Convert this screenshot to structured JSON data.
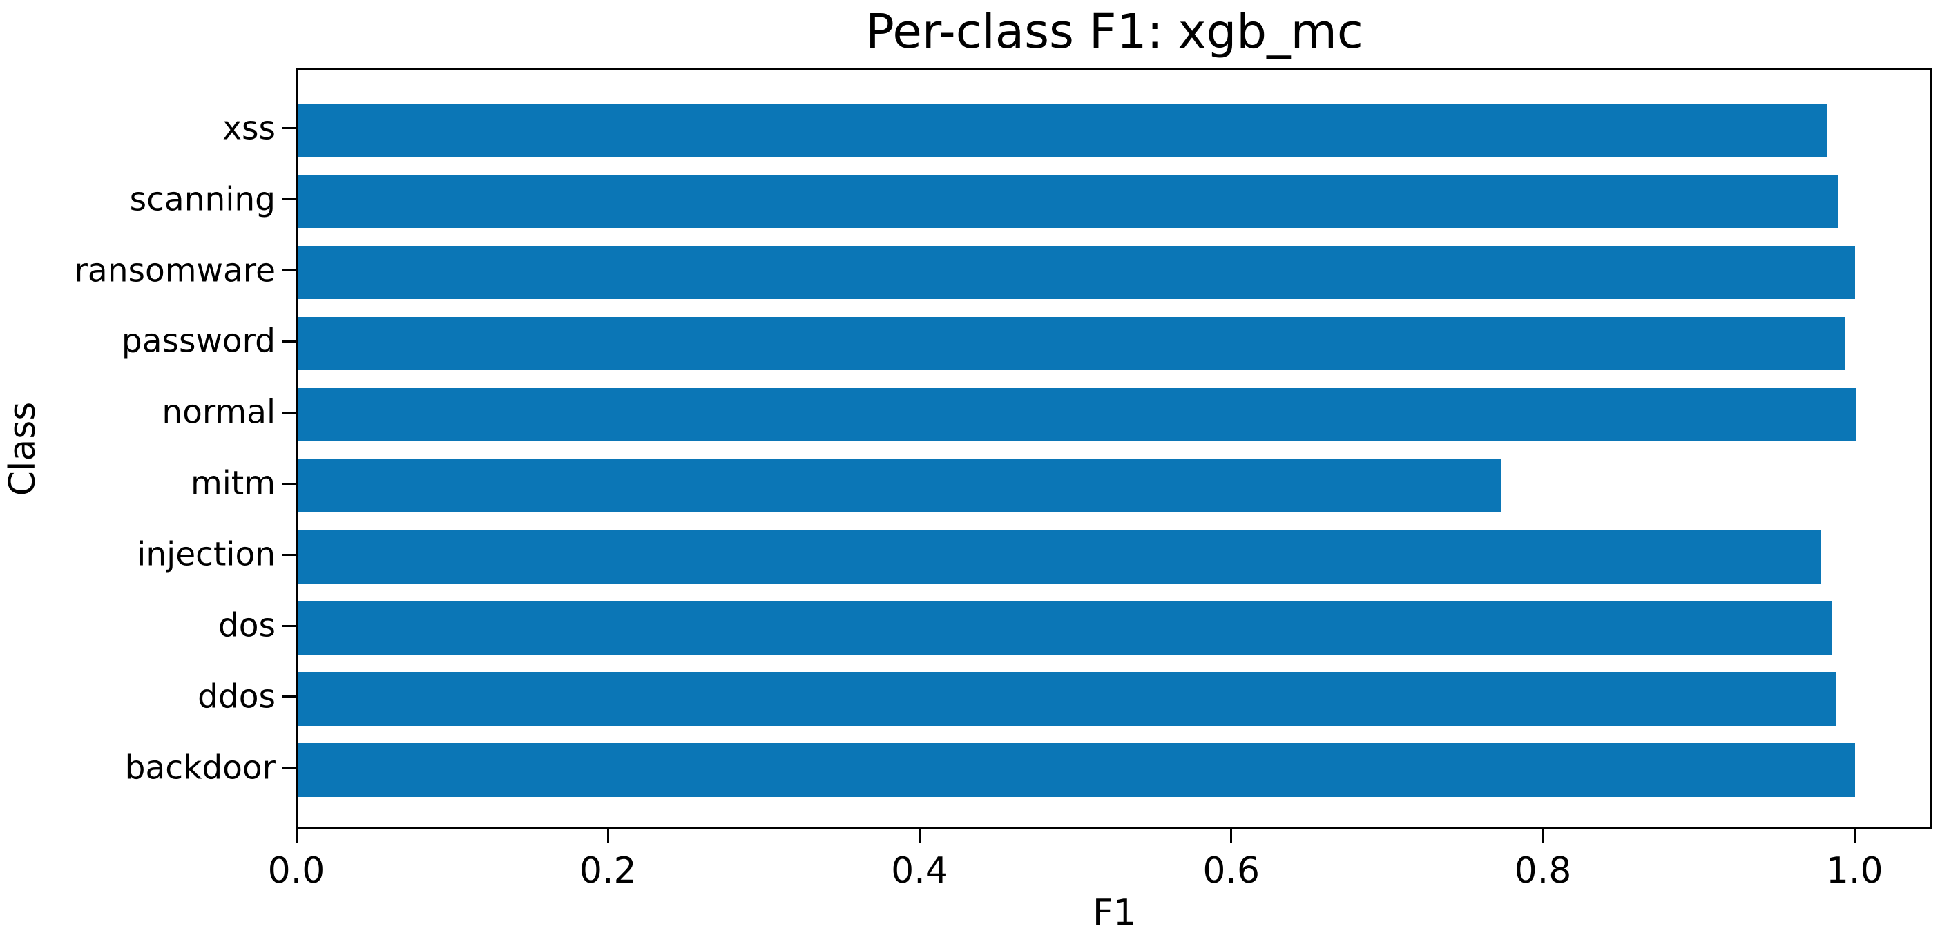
{
  "figure": {
    "background": "#ffffff"
  },
  "chart_data": {
    "type": "bar",
    "orientation": "horizontal",
    "title": "Per-class F1: xgb_mc",
    "xlabel": "F1",
    "ylabel": "Class",
    "categories_order": "top-to-bottom",
    "categories": [
      "xss",
      "scanning",
      "ransomware",
      "password",
      "normal",
      "mitm",
      "injection",
      "dos",
      "ddos",
      "backdoor"
    ],
    "values": [
      0.981,
      0.988,
      0.999,
      0.993,
      1.0,
      0.772,
      0.977,
      0.984,
      0.987,
      0.999
    ],
    "x_ticks": [
      0.0,
      0.2,
      0.4,
      0.6,
      0.8,
      1.0
    ],
    "x_tick_labels": [
      "0.0",
      "0.2",
      "0.4",
      "0.6",
      "0.8",
      "1.0"
    ],
    "xlim": [
      0,
      1.05
    ],
    "grid": false,
    "legend": null,
    "bar_color": "#0b76b6",
    "axis_color": "#000000",
    "text_color": "#000000"
  }
}
